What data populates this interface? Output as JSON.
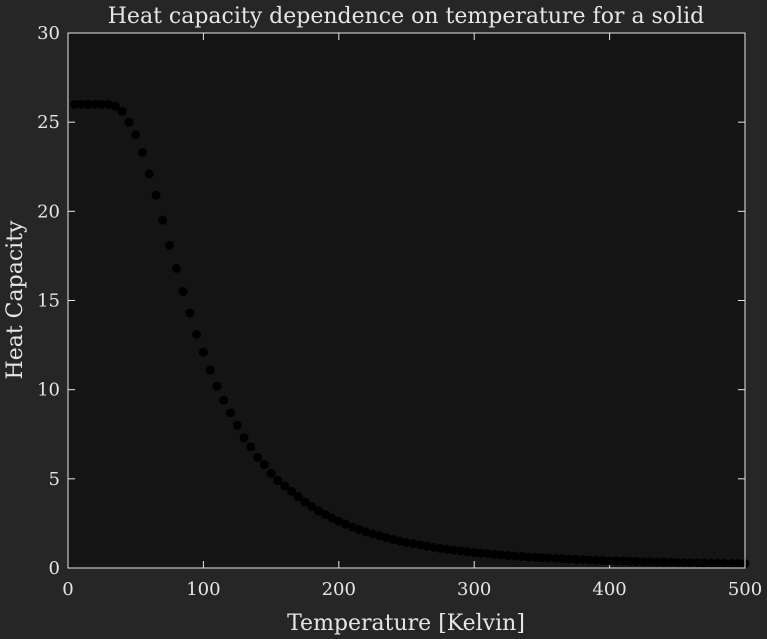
{
  "chart_data": {
    "type": "scatter",
    "title": "Heat capacity dependence on temperature for a solid",
    "xlabel": "Temperature [Kelvin]",
    "ylabel": "Heat Capacity",
    "xlim": [
      0,
      500
    ],
    "ylim": [
      0,
      30
    ],
    "xticks": [
      "0",
      "100",
      "200",
      "300",
      "400",
      "500"
    ],
    "yticks": [
      "0",
      "5",
      "10",
      "15",
      "20",
      "25",
      "30"
    ],
    "grid": false,
    "marker_color": "#000000",
    "axes_facecolor": "#141414",
    "figure_facecolor": "#262626",
    "text_color": "#e6e6e6",
    "series": [
      {
        "x": [
          5,
          10,
          15,
          20,
          25,
          30,
          35,
          40,
          45,
          50,
          55,
          60,
          65,
          70,
          75,
          80,
          85,
          90,
          95,
          100,
          105,
          110,
          115,
          120,
          125,
          130,
          135,
          140,
          145,
          150,
          155,
          160,
          165,
          170,
          175,
          180,
          185,
          190,
          195,
          200,
          205,
          210,
          215,
          220,
          225,
          230,
          235,
          240,
          245,
          250,
          255,
          260,
          265,
          270,
          275,
          280,
          285,
          290,
          295,
          300,
          305,
          310,
          315,
          320,
          325,
          330,
          335,
          340,
          345,
          350,
          355,
          360,
          365,
          370,
          375,
          380,
          385,
          390,
          395,
          400,
          405,
          410,
          415,
          420,
          425,
          430,
          435,
          440,
          445,
          450,
          455,
          460,
          465,
          470,
          475,
          480,
          485,
          490,
          495,
          500
        ],
        "y": [
          26.0,
          26.0,
          26.0,
          26.0,
          26.0,
          26.0,
          25.9,
          25.6,
          25.0,
          24.3,
          23.3,
          22.1,
          20.9,
          19.5,
          18.1,
          16.8,
          15.5,
          14.3,
          13.1,
          12.1,
          11.1,
          10.2,
          9.4,
          8.7,
          8.0,
          7.3,
          6.8,
          6.2,
          5.8,
          5.3,
          4.9,
          4.6,
          4.3,
          4.0,
          3.7,
          3.45,
          3.2,
          3.0,
          2.8,
          2.62,
          2.46,
          2.3,
          2.16,
          2.03,
          1.91,
          1.8,
          1.7,
          1.6,
          1.51,
          1.43,
          1.36,
          1.29,
          1.22,
          1.16,
          1.1,
          1.05,
          1.0,
          0.96,
          0.91,
          0.87,
          0.83,
          0.8,
          0.76,
          0.73,
          0.7,
          0.67,
          0.65,
          0.62,
          0.6,
          0.58,
          0.56,
          0.54,
          0.52,
          0.5,
          0.48,
          0.47,
          0.45,
          0.44,
          0.42,
          0.41,
          0.4,
          0.39,
          0.38,
          0.37,
          0.36,
          0.35,
          0.34,
          0.33,
          0.32,
          0.31,
          0.3,
          0.29,
          0.29,
          0.28,
          0.27,
          0.27,
          0.26,
          0.25,
          0.25,
          0.24
        ]
      }
    ]
  }
}
